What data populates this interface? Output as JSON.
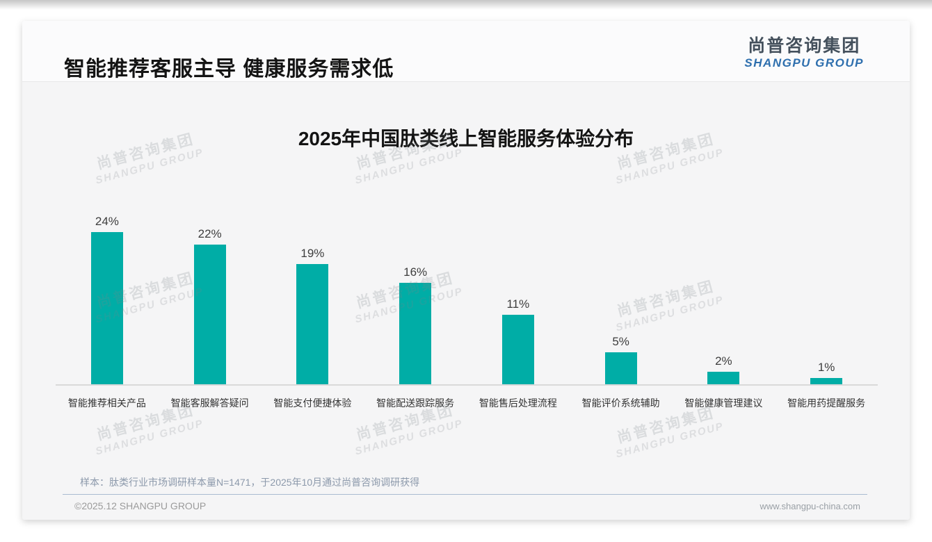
{
  "page": {
    "header": {
      "title": "智能推荐客服主导 健康服务需求低"
    },
    "logo": {
      "zh": "尚普咨询集团",
      "en": "SHANGPU GROUP"
    },
    "watermark": {
      "zh": "尚普咨询集团",
      "en": "SHANGPU GROUP"
    },
    "footer": {
      "note": "样本：肽类行业市场调研样本量N=1471，于2025年10月通过尚普咨询调研获得",
      "copyright": "©2025.12 SHANGPU GROUP",
      "website": "www.shangpu-china.com"
    },
    "colors": {
      "bar": "#00ADA6",
      "logo_zh": "#44505C",
      "logo_en": "#2E6FAE",
      "note_text": "#8C99AB",
      "footer_divider": "#A9BBD1"
    }
  },
  "chart_data": {
    "type": "bar",
    "title": "2025年中国肽类线上智能服务体验分布",
    "categories": [
      "智能推荐相关产品",
      "智能客服解答疑问",
      "智能支付便捷体验",
      "智能配送跟踪服务",
      "智能售后处理流程",
      "智能评价系统辅助",
      "智能健康管理建议",
      "智能用药提醒服务"
    ],
    "values": [
      24,
      22,
      19,
      16,
      11,
      5,
      2,
      1
    ],
    "data_labels": [
      "24%",
      "22%",
      "19%",
      "16%",
      "11%",
      "5%",
      "2%",
      "1%"
    ],
    "unit": "%",
    "ylim": [
      0,
      26
    ],
    "bar_color": "#00ADA6",
    "grid": false,
    "legend": false,
    "xlabel": "",
    "ylabel": ""
  }
}
